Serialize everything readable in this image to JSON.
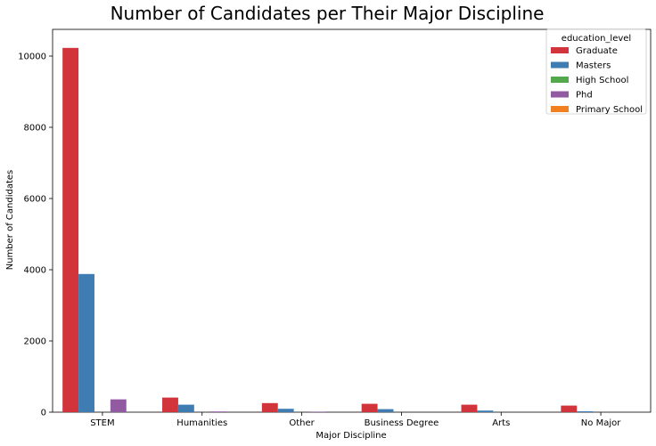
{
  "chart_data": {
    "type": "bar",
    "title": "Number of Candidates per Their Major Discipline",
    "xlabel": "Major Discipline",
    "ylabel": "Number of Candidates",
    "ylim": [
      0,
      10750
    ],
    "yticks": [
      0,
      2000,
      4000,
      6000,
      8000,
      10000
    ],
    "categories": [
      "STEM",
      "Humanities",
      "Other",
      "Business Degree",
      "Arts",
      "No Major"
    ],
    "legend": {
      "title": "education_level",
      "placement": "top-right"
    },
    "grid": false,
    "series": [
      {
        "name": "Graduate",
        "color": "#d1343b",
        "values": [
          10230,
          410,
          255,
          235,
          210,
          185
        ]
      },
      {
        "name": "Masters",
        "color": "#3e7cb1",
        "values": [
          3880,
          210,
          95,
          85,
          45,
          25
        ]
      },
      {
        "name": "High School",
        "color": "#52a84a",
        "values": [
          0,
          0,
          0,
          0,
          0,
          0
        ]
      },
      {
        "name": "Phd",
        "color": "#925aa1",
        "values": [
          360,
          20,
          15,
          0,
          0,
          0
        ]
      },
      {
        "name": "Primary School",
        "color": "#f08020",
        "values": [
          0,
          0,
          0,
          0,
          0,
          0
        ]
      }
    ]
  }
}
